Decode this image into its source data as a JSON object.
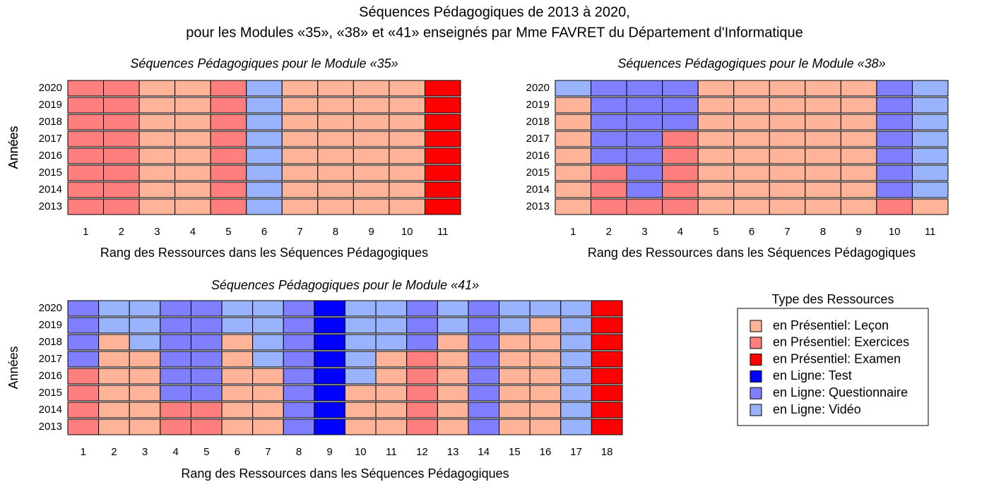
{
  "title": [
    "Séquences Pédagogiques de 2013 à 2020,",
    "pour les Modules «35», «38» et «41» enseignés par Mme FAVRET du Département d'Informatique"
  ],
  "legend": {
    "title": "Type des Ressources",
    "items": [
      {
        "name": "en Présentiel: Leçon",
        "color": "#ffb499"
      },
      {
        "name": "en Présentiel: Exercices",
        "color": "#ff7f7f"
      },
      {
        "name": "en Présentiel: Examen",
        "color": "#ff0000"
      },
      {
        "name": "en Ligne: Test",
        "color": "#0000ff"
      },
      {
        "name": "en Ligne: Questionnaire",
        "color": "#7f7fff"
      },
      {
        "name": "en Ligne: Vidéo",
        "color": "#99b3ff"
      }
    ]
  },
  "chart_data": [
    {
      "type": "heatmap",
      "title": "Séquences Pédagogiques pour le Module «35»",
      "xlabel": "Rang des Ressources dans les Séquences Pédagogiques",
      "ylabel": "Années",
      "x": [
        1,
        2,
        3,
        4,
        5,
        6,
        7,
        8,
        9,
        10,
        11
      ],
      "y": [
        2020,
        2019,
        2018,
        2017,
        2016,
        2015,
        2014,
        2013
      ],
      "values": [
        [
          1,
          1,
          0,
          0,
          1,
          5,
          0,
          0,
          0,
          0,
          2
        ],
        [
          1,
          1,
          0,
          0,
          1,
          5,
          0,
          0,
          0,
          0,
          2
        ],
        [
          1,
          1,
          0,
          0,
          1,
          5,
          0,
          0,
          0,
          0,
          2
        ],
        [
          1,
          1,
          0,
          0,
          1,
          5,
          0,
          0,
          0,
          0,
          2
        ],
        [
          1,
          1,
          0,
          0,
          1,
          5,
          0,
          0,
          0,
          0,
          2
        ],
        [
          1,
          1,
          0,
          0,
          1,
          5,
          0,
          0,
          0,
          0,
          2
        ],
        [
          1,
          1,
          0,
          0,
          1,
          5,
          0,
          0,
          0,
          0,
          2
        ],
        [
          1,
          1,
          0,
          0,
          1,
          5,
          0,
          0,
          0,
          0,
          2
        ]
      ]
    },
    {
      "type": "heatmap",
      "title": "Séquences Pédagogiques pour le Module «38»",
      "xlabel": "Rang des Ressources dans les Séquences Pédagogiques",
      "ylabel": "Années",
      "x": [
        1,
        2,
        3,
        4,
        5,
        6,
        7,
        8,
        9,
        10,
        11
      ],
      "y": [
        2020,
        2019,
        2018,
        2017,
        2016,
        2015,
        2014,
        2013
      ],
      "values": [
        [
          5,
          4,
          4,
          4,
          0,
          0,
          0,
          0,
          0,
          4,
          5
        ],
        [
          0,
          4,
          4,
          4,
          0,
          0,
          0,
          0,
          0,
          4,
          5
        ],
        [
          0,
          4,
          4,
          4,
          0,
          0,
          0,
          0,
          0,
          4,
          5
        ],
        [
          0,
          4,
          4,
          1,
          0,
          0,
          0,
          0,
          0,
          4,
          5
        ],
        [
          0,
          4,
          4,
          1,
          0,
          0,
          0,
          0,
          0,
          4,
          5
        ],
        [
          0,
          1,
          4,
          1,
          0,
          0,
          0,
          0,
          0,
          4,
          5
        ],
        [
          0,
          1,
          4,
          1,
          0,
          0,
          0,
          0,
          0,
          4,
          5
        ],
        [
          0,
          1,
          1,
          1,
          0,
          0,
          0,
          0,
          0,
          1,
          0
        ]
      ]
    },
    {
      "type": "heatmap",
      "title": "Séquences Pédagogiques pour le Module «41»",
      "xlabel": "Rang des Ressources dans les Séquences Pédagogiques",
      "ylabel": "Années",
      "x": [
        1,
        2,
        3,
        4,
        5,
        6,
        7,
        8,
        9,
        10,
        11,
        12,
        13,
        14,
        15,
        16,
        17,
        18
      ],
      "y": [
        2020,
        2019,
        2018,
        2017,
        2016,
        2015,
        2014,
        2013
      ],
      "values": [
        [
          4,
          5,
          5,
          4,
          4,
          5,
          5,
          4,
          3,
          5,
          5,
          4,
          5,
          4,
          5,
          5,
          5,
          2
        ],
        [
          4,
          5,
          5,
          4,
          4,
          5,
          5,
          4,
          3,
          5,
          5,
          4,
          5,
          4,
          5,
          0,
          5,
          2
        ],
        [
          4,
          0,
          5,
          4,
          4,
          0,
          5,
          4,
          3,
          5,
          5,
          4,
          0,
          4,
          0,
          0,
          5,
          2
        ],
        [
          4,
          0,
          0,
          4,
          4,
          0,
          5,
          4,
          3,
          5,
          0,
          1,
          0,
          4,
          0,
          0,
          5,
          2
        ],
        [
          1,
          0,
          0,
          4,
          4,
          0,
          0,
          4,
          3,
          5,
          0,
          1,
          0,
          4,
          0,
          0,
          5,
          2
        ],
        [
          1,
          0,
          0,
          4,
          4,
          0,
          0,
          4,
          3,
          0,
          0,
          1,
          0,
          4,
          0,
          0,
          5,
          2
        ],
        [
          1,
          0,
          0,
          1,
          1,
          0,
          0,
          4,
          3,
          0,
          0,
          1,
          0,
          4,
          0,
          0,
          5,
          2
        ],
        [
          1,
          0,
          0,
          1,
          1,
          0,
          0,
          4,
          3,
          0,
          0,
          1,
          0,
          4,
          0,
          0,
          5,
          2
        ]
      ]
    }
  ]
}
